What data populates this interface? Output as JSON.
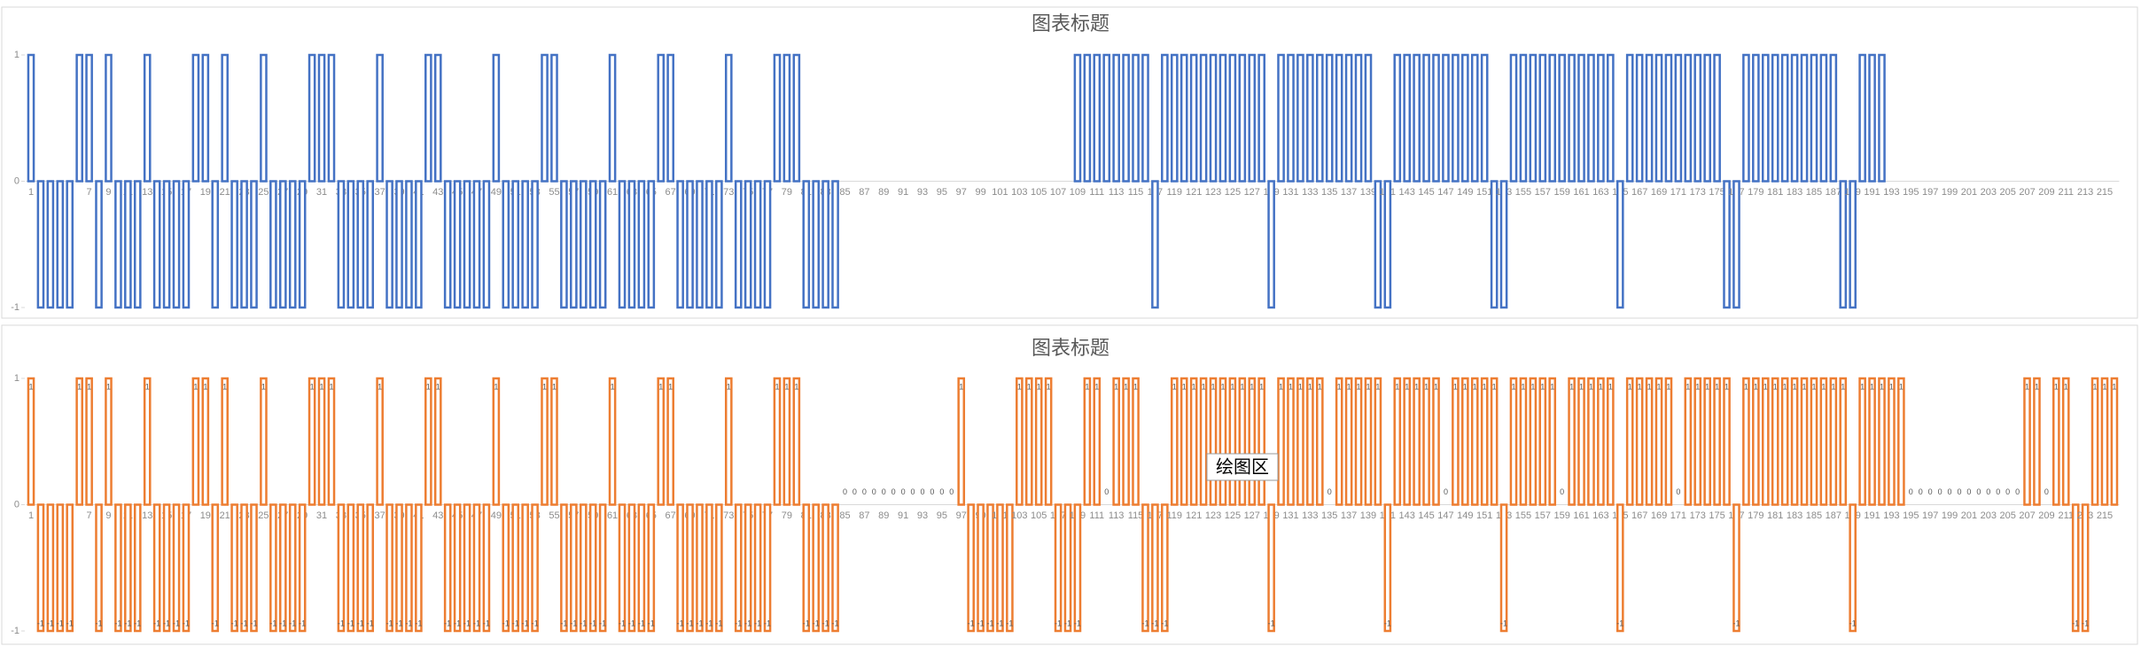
{
  "chart_data": [
    {
      "type": "bar",
      "title": "图表标题",
      "color": "#4472c4",
      "ylim": [
        -1,
        1
      ],
      "yticks": [
        -1,
        0,
        1
      ],
      "data_labels": false,
      "categories": [
        "1",
        null,
        "3",
        null,
        "5",
        null,
        "7",
        null,
        "9",
        null,
        "11",
        null,
        "13",
        null,
        "15",
        null,
        "17",
        null,
        "19",
        null,
        "21",
        null,
        "23",
        null,
        "25",
        null,
        "27",
        null,
        "29",
        null,
        "31",
        null,
        "33",
        null,
        "35",
        null,
        "37",
        null,
        "39",
        null,
        "41",
        null,
        "43",
        null,
        "45",
        null,
        "47",
        null,
        "49",
        null,
        "51",
        null,
        "53",
        null,
        "55",
        null,
        "57",
        null,
        "59",
        null,
        "61",
        null,
        "63",
        null,
        "65",
        null,
        "67",
        null,
        "69",
        null,
        "71",
        null,
        "73",
        null,
        "75",
        null,
        "77",
        null,
        "79",
        null,
        "81",
        null,
        "83",
        null,
        "85",
        null,
        "87",
        null,
        "89",
        null,
        "91",
        null,
        "93",
        null,
        "95",
        null,
        "97",
        null,
        "99",
        null,
        "101",
        null,
        "103",
        null,
        "105",
        null,
        "107",
        null,
        "109",
        null,
        "111",
        null,
        "113",
        null,
        "115",
        null,
        "117",
        null,
        "119",
        null,
        "121",
        null,
        "123",
        null,
        "125",
        null,
        "127",
        null,
        "129",
        null,
        "131",
        null,
        "133",
        null,
        "135",
        null,
        "137",
        null,
        "139",
        null,
        "141",
        null,
        "143",
        null,
        "145",
        null,
        "147",
        null,
        "149",
        null,
        "151",
        null,
        "153",
        null,
        "155",
        null,
        "157",
        null,
        "159",
        null,
        "161",
        null,
        "163",
        null,
        "165",
        null,
        "167",
        null,
        "169",
        null,
        "171",
        null,
        "173",
        null,
        "175",
        null,
        "177",
        null,
        "179",
        null,
        "181",
        null,
        "183",
        null,
        "185",
        null,
        "187",
        null,
        "189",
        null,
        "191",
        null,
        "193",
        null,
        "195",
        null,
        "197",
        null,
        "199",
        null,
        "201",
        null,
        "203",
        null,
        "205",
        null,
        "207",
        null,
        "209",
        null,
        "211",
        null,
        "213",
        null,
        "215",
        null
      ],
      "values": [
        1,
        -1,
        -1,
        -1,
        -1,
        1,
        1,
        -1,
        1,
        -1,
        -1,
        -1,
        1,
        -1,
        -1,
        -1,
        -1,
        1,
        1,
        -1,
        1,
        -1,
        -1,
        -1,
        1,
        -1,
        -1,
        -1,
        -1,
        1,
        1,
        1,
        -1,
        -1,
        -1,
        -1,
        1,
        -1,
        -1,
        -1,
        -1,
        1,
        1,
        -1,
        -1,
        -1,
        -1,
        -1,
        1,
        -1,
        -1,
        -1,
        -1,
        1,
        1,
        -1,
        -1,
        -1,
        -1,
        -1,
        1,
        -1,
        -1,
        -1,
        -1,
        1,
        1,
        -1,
        -1,
        -1,
        -1,
        -1,
        1,
        -1,
        -1,
        -1,
        -1,
        1,
        1,
        1,
        -1,
        -1,
        -1,
        -1,
        0,
        0,
        0,
        0,
        0,
        0,
        0,
        0,
        0,
        0,
        0,
        0,
        0,
        0,
        0,
        0,
        0,
        0,
        0,
        0,
        0,
        0,
        0,
        0,
        1,
        1,
        1,
        1,
        1,
        1,
        1,
        1,
        -1,
        1,
        1,
        1,
        1,
        1,
        1,
        1,
        1,
        1,
        1,
        1,
        -1,
        1,
        1,
        1,
        1,
        1,
        1,
        1,
        1,
        1,
        1,
        -1,
        -1,
        1,
        1,
        1,
        1,
        1,
        1,
        1,
        1,
        1,
        1,
        -1,
        -1,
        1,
        1,
        1,
        1,
        1,
        1,
        1,
        1,
        1,
        1,
        1,
        -1,
        1,
        1,
        1,
        1,
        1,
        1,
        1,
        1,
        1,
        1,
        -1,
        -1,
        1,
        1,
        1,
        1,
        1,
        1,
        1,
        1,
        1,
        1,
        -1,
        -1,
        1,
        1,
        1,
        0,
        0,
        0,
        0,
        0,
        0,
        0,
        0,
        0,
        0,
        0,
        0,
        0,
        0,
        0,
        0,
        0,
        0,
        0,
        0,
        0,
        0,
        0,
        0
      ]
    },
    {
      "type": "bar",
      "title": "图表标题",
      "color": "#ed7d31",
      "ylim": [
        -1,
        1
      ],
      "yticks": [
        -1,
        0,
        1
      ],
      "data_labels": true,
      "tooltip": "绘图区",
      "categories": [
        "1",
        null,
        "3",
        null,
        "5",
        null,
        "7",
        null,
        "9",
        null,
        "11",
        null,
        "13",
        null,
        "15",
        null,
        "17",
        null,
        "19",
        null,
        "21",
        null,
        "23",
        null,
        "25",
        null,
        "27",
        null,
        "29",
        null,
        "31",
        null,
        "33",
        null,
        "35",
        null,
        "37",
        null,
        "39",
        null,
        "41",
        null,
        "43",
        null,
        "45",
        null,
        "47",
        null,
        "49",
        null,
        "51",
        null,
        "53",
        null,
        "55",
        null,
        "57",
        null,
        "59",
        null,
        "61",
        null,
        "63",
        null,
        "65",
        null,
        "67",
        null,
        "69",
        null,
        "71",
        null,
        "73",
        null,
        "75",
        null,
        "77",
        null,
        "79",
        null,
        "81",
        null,
        "83",
        null,
        "85",
        null,
        "87",
        null,
        "89",
        null,
        "91",
        null,
        "93",
        null,
        "95",
        null,
        "97",
        null,
        "99",
        null,
        "101",
        null,
        "103",
        null,
        "105",
        null,
        "107",
        null,
        "109",
        null,
        "111",
        null,
        "113",
        null,
        "115",
        null,
        "117",
        null,
        "119",
        null,
        "121",
        null,
        "123",
        null,
        "125",
        null,
        "127",
        null,
        "129",
        null,
        "131",
        null,
        "133",
        null,
        "135",
        null,
        "137",
        null,
        "139",
        null,
        "141",
        null,
        "143",
        null,
        "145",
        null,
        "147",
        null,
        "149",
        null,
        "151",
        null,
        "153",
        null,
        "155",
        null,
        "157",
        null,
        "159",
        null,
        "161",
        null,
        "163",
        null,
        "165",
        null,
        "167",
        null,
        "169",
        null,
        "171",
        null,
        "173",
        null,
        "175",
        null,
        "177",
        null,
        "179",
        null,
        "181",
        null,
        "183",
        null,
        "185",
        null,
        "187",
        null,
        "189",
        null,
        "191",
        null,
        "193",
        null,
        "195",
        null,
        "197",
        null,
        "199",
        null,
        "201",
        null,
        "203",
        null,
        "205",
        null,
        "207",
        null,
        "209",
        null,
        "211",
        null,
        "213",
        null,
        "215",
        null
      ],
      "values": [
        1,
        -1,
        -1,
        -1,
        -1,
        1,
        1,
        -1,
        1,
        -1,
        -1,
        -1,
        1,
        -1,
        -1,
        -1,
        -1,
        1,
        1,
        -1,
        1,
        -1,
        -1,
        -1,
        1,
        -1,
        -1,
        -1,
        -1,
        1,
        1,
        1,
        -1,
        -1,
        -1,
        -1,
        1,
        -1,
        -1,
        -1,
        -1,
        1,
        1,
        -1,
        -1,
        -1,
        -1,
        -1,
        1,
        -1,
        -1,
        -1,
        -1,
        1,
        1,
        -1,
        -1,
        -1,
        -1,
        -1,
        1,
        -1,
        -1,
        -1,
        -1,
        1,
        1,
        -1,
        -1,
        -1,
        -1,
        -1,
        1,
        -1,
        -1,
        -1,
        -1,
        1,
        1,
        1,
        -1,
        -1,
        -1,
        -1,
        0,
        0,
        0,
        0,
        0,
        0,
        0,
        0,
        0,
        0,
        0,
        0,
        1,
        -1,
        -1,
        -1,
        -1,
        -1,
        1,
        1,
        1,
        1,
        -1,
        -1,
        -1,
        1,
        1,
        0,
        1,
        1,
        1,
        -1,
        -1,
        -1,
        1,
        1,
        1,
        1,
        1,
        1,
        1,
        1,
        1,
        1,
        -1,
        1,
        1,
        1,
        1,
        1,
        0,
        1,
        1,
        1,
        1,
        1,
        -1,
        1,
        1,
        1,
        1,
        1,
        0,
        1,
        1,
        1,
        1,
        1,
        -1,
        1,
        1,
        1,
        1,
        1,
        0,
        1,
        1,
        1,
        1,
        1,
        -1,
        1,
        1,
        1,
        1,
        1,
        0,
        1,
        1,
        1,
        1,
        1,
        -1,
        1,
        1,
        1,
        1,
        1,
        1,
        1,
        1,
        1,
        1,
        1,
        -1,
        1,
        1,
        1,
        1,
        1,
        0,
        0,
        0,
        0,
        0,
        0,
        0,
        0,
        0,
        0,
        0,
        0,
        1,
        1,
        0,
        1,
        1,
        -1,
        -1,
        1,
        1,
        1
      ]
    }
  ]
}
